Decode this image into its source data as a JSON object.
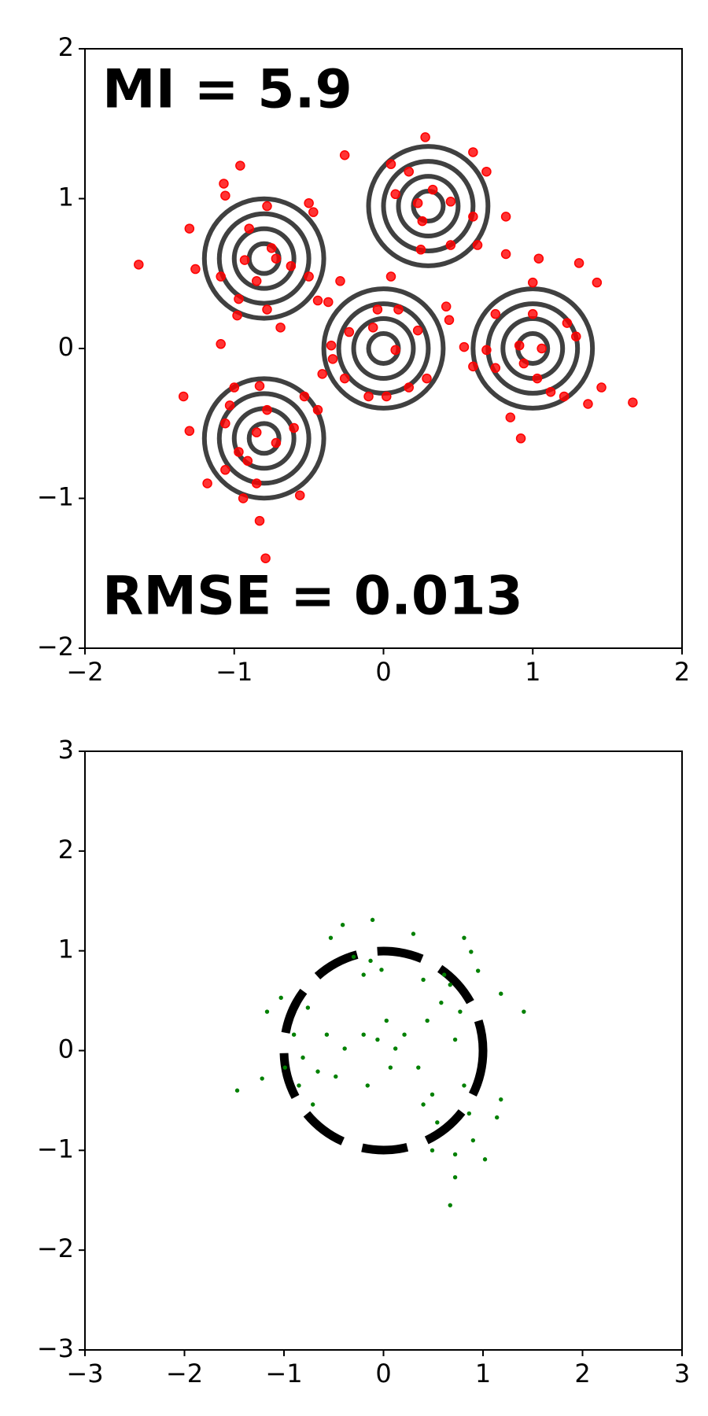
{
  "chart_data": [
    {
      "type": "scatter",
      "annotations": [
        "MI = 5.9",
        "RMSE = 0.013"
      ],
      "color": "#ff0000",
      "xlim": [
        -2,
        2
      ],
      "ylim": [
        -2,
        2
      ],
      "xticks": [
        {
          "value": -2,
          "label": "−2"
        },
        {
          "value": -1,
          "label": "−1"
        },
        0,
        1,
        2
      ],
      "yticks": [
        {
          "value": -2,
          "label": "−2"
        },
        {
          "value": -1,
          "label": "−1"
        },
        0,
        1,
        2
      ],
      "contours": {
        "color": "#404040",
        "centers_x": [
          -0.8,
          0.3,
          0,
          1,
          -0.8
        ],
        "centers_y": [
          0.6,
          0.95,
          0,
          0,
          -0.6
        ],
        "radii": [
          0.1,
          0.2,
          0.3,
          0.4
        ]
      },
      "x": [
        -1.64,
        -0.96,
        -1.07,
        -1.06,
        -1.3,
        -1.26,
        -1.09,
        -0.98,
        -1.09,
        -0.97,
        -0.78,
        -0.9,
        -0.75,
        -0.72,
        -0.93,
        -0.85,
        -0.78,
        -0.69,
        -0.62,
        -0.5,
        -0.5,
        -0.47,
        -0.26,
        -0.44,
        -0.37,
        -0.29,
        0.05,
        0.05,
        0.28,
        0.17,
        0.08,
        0.23,
        0.33,
        0.26,
        0.45,
        0.6,
        0.69,
        0.6,
        0.82,
        0.45,
        0.63,
        0.25,
        0.82,
        1.04,
        1.31,
        1.43,
        1.0,
        0.42,
        0.44,
        0.75,
        1.0,
        1.23,
        1.29,
        0.91,
        1.06,
        0.54,
        0.6,
        0.69,
        0.75,
        0.94,
        1.03,
        1.12,
        1.21,
        1.37,
        1.46,
        1.67,
        0.85,
        0.92,
        -0.04,
        0.1,
        0.23,
        -0.07,
        -0.23,
        -0.35,
        -0.34,
        -0.26,
        -0.1,
        0.02,
        0.17,
        0.29,
        0.08,
        -0.41,
        -1.34,
        -1.3,
        -1.18,
        -1.06,
        -1.0,
        -1.03,
        -0.97,
        -0.83,
        -0.78,
        -0.85,
        -0.91,
        -0.94,
        -0.85,
        -0.72,
        -0.6,
        -0.53,
        -0.44,
        -0.56,
        -0.83,
        -0.79,
        -1.06
      ],
      "y": [
        0.56,
        1.22,
        1.1,
        1.02,
        0.8,
        0.53,
        0.48,
        0.22,
        0.03,
        0.33,
        0.95,
        0.8,
        0.67,
        0.6,
        0.59,
        0.45,
        0.26,
        0.14,
        0.55,
        0.48,
        0.97,
        0.91,
        1.29,
        0.32,
        0.31,
        0.45,
        0.48,
        1.23,
        1.41,
        1.18,
        1.03,
        0.97,
        1.06,
        0.85,
        0.98,
        1.31,
        1.18,
        0.88,
        0.88,
        0.69,
        0.69,
        0.66,
        0.63,
        0.6,
        0.57,
        0.44,
        0.44,
        0.28,
        0.19,
        0.23,
        0.23,
        0.17,
        0.08,
        0.02,
        0.0,
        0.01,
        -0.12,
        -0.01,
        -0.13,
        -0.1,
        -0.2,
        -0.29,
        -0.32,
        -0.37,
        -0.26,
        -0.36,
        -0.46,
        -0.6,
        0.26,
        0.26,
        0.12,
        0.14,
        0.11,
        0.02,
        -0.07,
        -0.2,
        -0.32,
        -0.32,
        -0.26,
        -0.2,
        -0.01,
        -0.17,
        -0.32,
        -0.55,
        -0.9,
        -0.5,
        -0.26,
        -0.38,
        -0.69,
        -0.25,
        -0.41,
        -0.56,
        -0.75,
        -1.0,
        -0.9,
        -0.63,
        -0.53,
        -0.32,
        -0.41,
        -0.98,
        -1.15,
        -1.4,
        -0.81
      ]
    },
    {
      "type": "scatter",
      "color": "#008000",
      "xlim": [
        -3,
        3
      ],
      "ylim": [
        -3,
        3
      ],
      "xticks": [
        {
          "value": -3,
          "label": "−3"
        },
        {
          "value": -2,
          "label": "−2"
        },
        {
          "value": -1,
          "label": "−1"
        },
        0,
        1,
        2,
        3
      ],
      "yticks": [
        {
          "value": -3,
          "label": "−3"
        },
        {
          "value": -2,
          "label": "−2"
        },
        {
          "value": -1,
          "label": "−1"
        },
        0,
        1,
        2,
        3
      ],
      "circle": {
        "center": [
          0,
          0
        ],
        "radius": 1,
        "color": "#000000"
      },
      "x": [
        -1.47,
        -1.22,
        -1.17,
        -1.03,
        -0.99,
        -0.9,
        -0.81,
        -0.66,
        -0.71,
        -0.85,
        -0.57,
        -0.48,
        -0.53,
        -0.41,
        -0.3,
        -0.2,
        -0.11,
        -0.13,
        -0.02,
        -0.06,
        0.03,
        0.12,
        0.21,
        0.3,
        0.35,
        0.44,
        0.49,
        0.54,
        0.58,
        0.67,
        0.72,
        0.77,
        0.81,
        0.86,
        0.88,
        0.9,
        0.95,
        1.02,
        1.14,
        1.18,
        1.41,
        0.67,
        0.72,
        -0.2,
        0.07,
        -0.16,
        -0.39,
        0.4,
        0.61,
        0.81,
        0.49,
        1.18,
        0.72,
        -0.76,
        0.4
      ],
      "y": [
        -0.4,
        -0.28,
        0.39,
        0.53,
        -0.17,
        0.16,
        -0.07,
        -0.21,
        -0.54,
        -0.35,
        0.16,
        -0.26,
        1.13,
        1.26,
        0.94,
        0.76,
        1.31,
        0.9,
        0.81,
        0.11,
        0.3,
        0.02,
        0.16,
        1.17,
        -0.17,
        0.3,
        -0.44,
        -0.72,
        0.48,
        0.66,
        0.11,
        0.39,
        -0.35,
        -0.63,
        0.99,
        -0.9,
        0.8,
        -1.09,
        -0.67,
        -0.49,
        0.39,
        -1.55,
        -1.27,
        0.16,
        -0.17,
        -0.35,
        0.02,
        0.71,
        0.76,
        1.13,
        -1.0,
        0.57,
        -1.04,
        0.43,
        -0.54
      ]
    }
  ]
}
